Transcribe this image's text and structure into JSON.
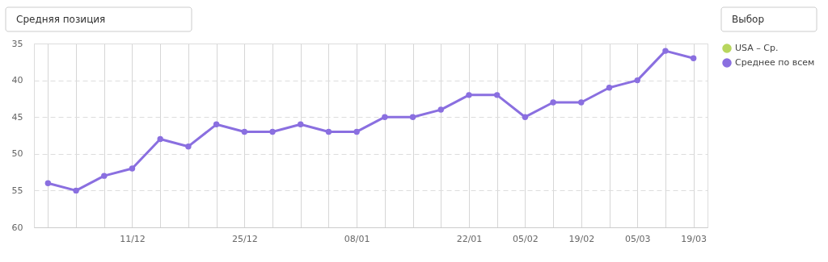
{
  "chart_data": {
    "type": "line",
    "categories": [
      null,
      null,
      null,
      "11/12",
      null,
      null,
      null,
      "25/12",
      null,
      null,
      null,
      "08/01",
      null,
      null,
      null,
      "22/01",
      null,
      "05/02",
      null,
      "19/02",
      null,
      "05/03",
      null,
      "19/03"
    ],
    "series": [
      {
        "name": "USA – Ср.",
        "color": "#b8d65e",
        "values": [
          null,
          null,
          null,
          null,
          null,
          null,
          null,
          null,
          null,
          null,
          null,
          null,
          null,
          null,
          null,
          null,
          null,
          null,
          null,
          null,
          null,
          null,
          null,
          null
        ]
      },
      {
        "name": "Среднее по всем",
        "color": "#8a6fe0",
        "values": [
          54,
          55,
          53,
          52,
          48,
          49,
          46,
          47,
          47,
          46,
          47,
          47,
          45,
          45,
          44,
          42,
          42,
          45,
          43,
          43,
          41,
          40,
          36,
          37
        ]
      }
    ],
    "ylim": [
      60,
      35
    ],
    "yticks": [
      35,
      40,
      45,
      50,
      55,
      60
    ],
    "grid": true,
    "legend": "right",
    "marker": "circle",
    "line_style": "solid",
    "annotations": [
      "Средняя позиция",
      "Выбор"
    ]
  }
}
